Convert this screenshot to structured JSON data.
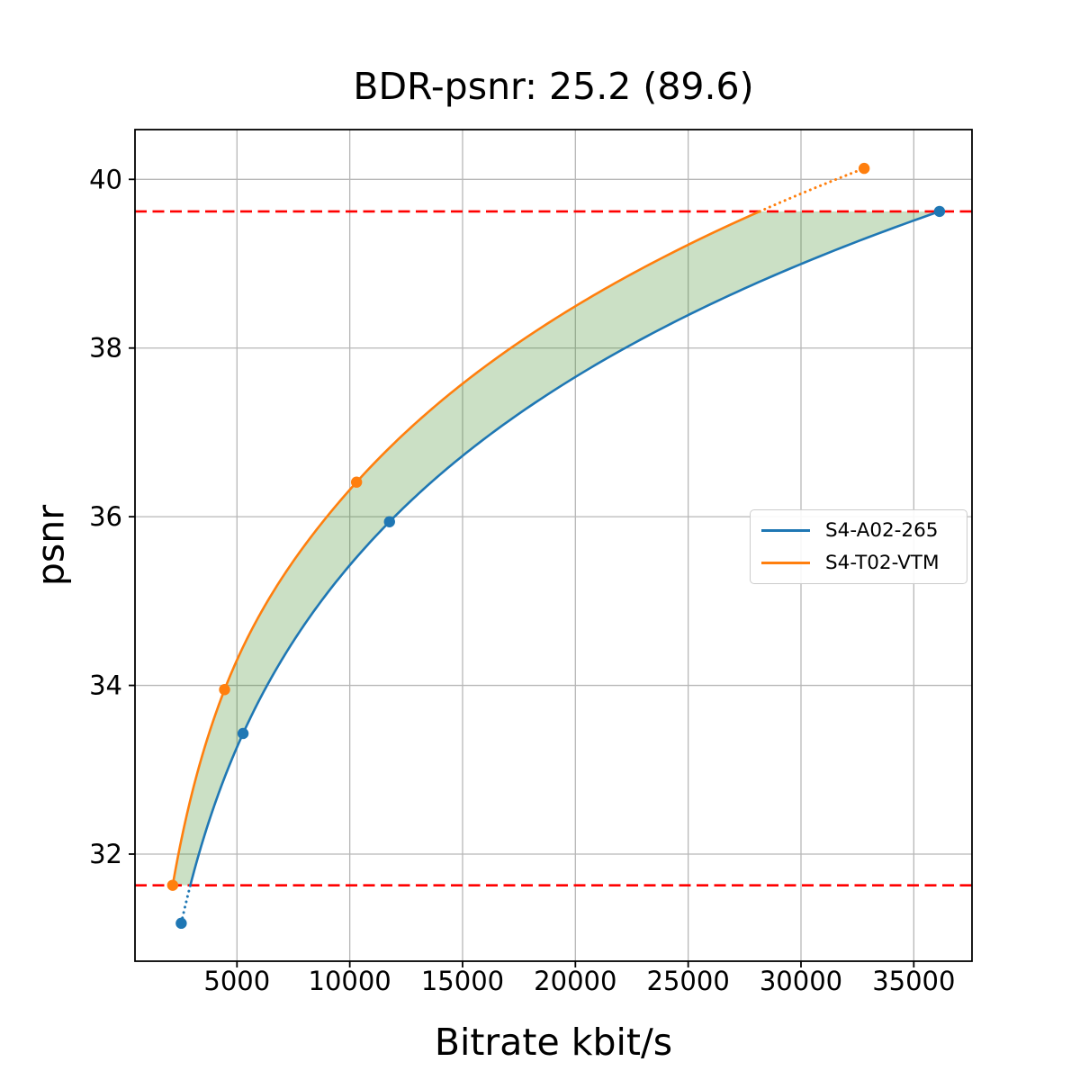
{
  "chart_data": {
    "type": "line",
    "title": "BDR-psnr: 25.2 (89.6)",
    "xlabel": "Bitrate kbit/s",
    "ylabel": "psnr",
    "xlim": [
      480,
      37580
    ],
    "ylim": [
      30.73,
      40.59
    ],
    "xticks": [
      5000,
      10000,
      15000,
      20000,
      25000,
      30000,
      35000
    ],
    "yticks": [
      32,
      34,
      36,
      38,
      40
    ],
    "grid": true,
    "grid_color": "#b7b7b7",
    "interpolation": "pchip-log10-bitrate",
    "legend_position": "center-right",
    "series": [
      {
        "name": "S4-A02-265",
        "color": "#1f77b4",
        "points": [
          [
            2530,
            31.18
          ],
          [
            5270,
            33.43
          ],
          [
            11760,
            35.94
          ],
          [
            36140,
            39.62
          ]
        ]
      },
      {
        "name": "S4-T02-VTM",
        "color": "#ff7f0e",
        "points": [
          [
            2150,
            31.63
          ],
          [
            4450,
            33.95
          ],
          [
            10300,
            36.41
          ],
          [
            32800,
            40.13
          ]
        ]
      }
    ],
    "overlap_band": {
      "psnr_low": 31.63,
      "psnr_high": 39.62,
      "ref_line_color": "#ff0000",
      "ref_line_style": "dashed",
      "fill_color": "#3e8c28",
      "fill_opacity": 0.27
    }
  }
}
